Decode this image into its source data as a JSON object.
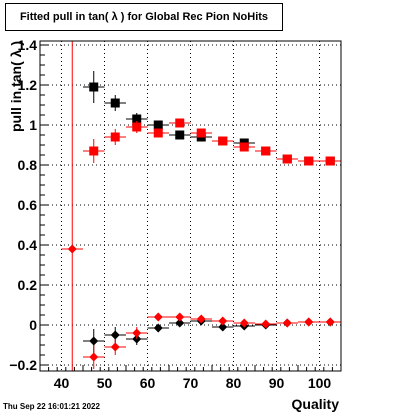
{
  "header": {
    "title": "Fitted pull in tan( λ ) for Global Rec Pion NoHits"
  },
  "footer": {
    "timestamp": "Thu Sep 22 16:01:21 2022"
  },
  "chart_data": {
    "type": "scatter",
    "title": "Fitted pull in tan( λ ) for Global Rec Pion NoHits",
    "xlabel": "Quality",
    "ylabel": "pull in tan( λ )",
    "xlim": [
      35,
      105
    ],
    "ylim": [
      -0.23,
      1.42
    ],
    "xticks": [
      40,
      50,
      60,
      70,
      80,
      90,
      100
    ],
    "yticks": [
      -0.2,
      0,
      0.2,
      0.4,
      0.6,
      0.8,
      1,
      1.2,
      1.4
    ],
    "ytick_labels": [
      "−0.2",
      "0",
      "0.2",
      "0.4",
      "0.6",
      "0.8",
      "1",
      "1.2",
      "1.4"
    ],
    "grid": true,
    "reference_line": {
      "x": 42.5,
      "color": "#ff0000"
    },
    "series": [
      {
        "marker": "square",
        "color": "#000000",
        "points": [
          {
            "x": 47.5,
            "y": 1.19,
            "err": 0.08
          },
          {
            "x": 52.5,
            "y": 1.11,
            "err": 0.04
          },
          {
            "x": 57.5,
            "y": 1.03,
            "err": 0.03
          },
          {
            "x": 62.5,
            "y": 1.0,
            "err": 0.02
          },
          {
            "x": 67.5,
            "y": 0.95,
            "err": 0.015
          },
          {
            "x": 72.5,
            "y": 0.94,
            "err": 0.015
          },
          {
            "x": 77.5,
            "y": 0.92,
            "err": 0.015
          },
          {
            "x": 82.5,
            "y": 0.91,
            "err": 0.015
          },
          {
            "x": 87.5,
            "y": 0.87,
            "err": 0.012
          },
          {
            "x": 92.5,
            "y": 0.83,
            "err": 0.012
          },
          {
            "x": 97.5,
            "y": 0.82,
            "err": 0.012
          },
          {
            "x": 102.5,
            "y": 0.82,
            "err": 0.012
          }
        ]
      },
      {
        "marker": "square",
        "color": "#ff0000",
        "points": [
          {
            "x": 47.5,
            "y": 0.87,
            "err": 0.06
          },
          {
            "x": 52.5,
            "y": 0.94,
            "err": 0.04
          },
          {
            "x": 57.5,
            "y": 0.99,
            "err": 0.03
          },
          {
            "x": 62.5,
            "y": 0.96,
            "err": 0.02
          },
          {
            "x": 67.5,
            "y": 1.01,
            "err": 0.015
          },
          {
            "x": 72.5,
            "y": 0.96,
            "err": 0.015
          },
          {
            "x": 77.5,
            "y": 0.92,
            "err": 0.015
          },
          {
            "x": 82.5,
            "y": 0.89,
            "err": 0.015
          },
          {
            "x": 87.5,
            "y": 0.87,
            "err": 0.012
          },
          {
            "x": 92.5,
            "y": 0.83,
            "err": 0.012
          },
          {
            "x": 97.5,
            "y": 0.82,
            "err": 0.012
          },
          {
            "x": 102.5,
            "y": 0.82,
            "err": 0.012
          }
        ]
      },
      {
        "marker": "diamond",
        "color": "#000000",
        "points": [
          {
            "x": 47.5,
            "y": -0.08,
            "err": 0.06
          },
          {
            "x": 52.5,
            "y": -0.05,
            "err": 0.04
          },
          {
            "x": 57.5,
            "y": -0.07,
            "err": 0.03
          },
          {
            "x": 62.5,
            "y": -0.015,
            "err": 0.02
          },
          {
            "x": 67.5,
            "y": 0.01,
            "err": 0.015
          },
          {
            "x": 72.5,
            "y": 0.02,
            "err": 0.015
          },
          {
            "x": 77.5,
            "y": -0.01,
            "err": 0.015
          },
          {
            "x": 82.5,
            "y": -0.005,
            "err": 0.012
          },
          {
            "x": 87.5,
            "y": 0.0,
            "err": 0.012
          },
          {
            "x": 92.5,
            "y": 0.01,
            "err": 0.012
          },
          {
            "x": 97.5,
            "y": 0.015,
            "err": 0.012
          },
          {
            "x": 102.5,
            "y": 0.015,
            "err": 0.012
          }
        ]
      },
      {
        "marker": "diamond",
        "color": "#ff0000",
        "points": [
          {
            "x": 42.5,
            "y": 0.38,
            "err": 0.0
          },
          {
            "x": 47.5,
            "y": -0.16,
            "err": 0.06
          },
          {
            "x": 52.5,
            "y": -0.11,
            "err": 0.04
          },
          {
            "x": 57.5,
            "y": -0.04,
            "err": 0.03
          },
          {
            "x": 62.5,
            "y": 0.04,
            "err": 0.02
          },
          {
            "x": 67.5,
            "y": 0.04,
            "err": 0.015
          },
          {
            "x": 72.5,
            "y": 0.03,
            "err": 0.015
          },
          {
            "x": 77.5,
            "y": 0.02,
            "err": 0.015
          },
          {
            "x": 82.5,
            "y": 0.01,
            "err": 0.012
          },
          {
            "x": 87.5,
            "y": 0.005,
            "err": 0.012
          },
          {
            "x": 92.5,
            "y": 0.01,
            "err": 0.012
          },
          {
            "x": 97.5,
            "y": 0.015,
            "err": 0.012
          },
          {
            "x": 102.5,
            "y": 0.015,
            "err": 0.012
          }
        ]
      }
    ]
  }
}
